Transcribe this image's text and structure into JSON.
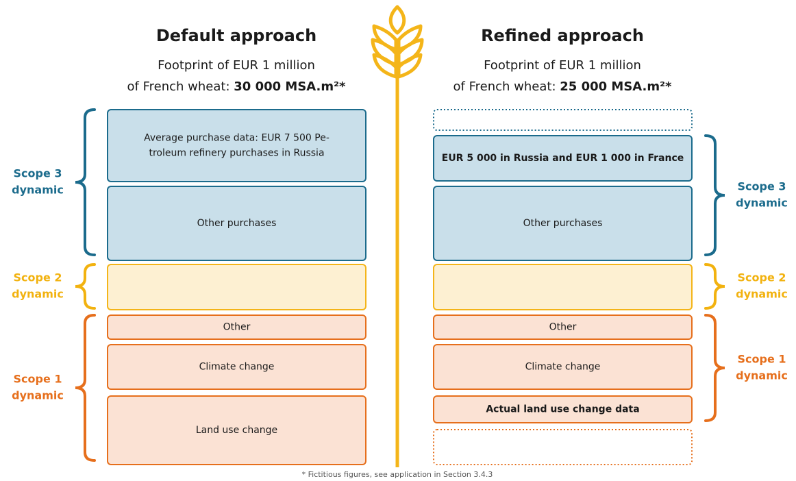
{
  "left": {
    "title": "Default approach",
    "subtitle": "Footprint of EUR 1 million",
    "subtitle_prefix": "of French wheat: ",
    "footprint": "30 000 MSA.m²*",
    "boxes": [
      {
        "lines": [
          "Average purchase data: EUR 7 500 Pe-",
          "troleum refinery purchases in Russia"
        ]
      },
      {
        "lines": [
          "Other purchases"
        ]
      },
      {
        "lines": [
          "Other"
        ]
      },
      {
        "lines": [
          "Climate change"
        ]
      },
      {
        "lines": [
          "Land use change"
        ]
      }
    ],
    "scopes": [
      [
        "Scope 3",
        "dynamic"
      ],
      [
        "Scope 2",
        "dynamic"
      ],
      [
        "Scope 1",
        "dynamic"
      ]
    ]
  },
  "right": {
    "title": "Refined approach",
    "subtitle": "Footprint of EUR 1 million",
    "subtitle_prefix": "of French wheat: ",
    "footprint": "25 000 MSA.m²*",
    "boxes": [
      {
        "lines": [
          "EUR 5 000 in Russia and EUR 1 000 in France"
        ]
      },
      {
        "lines": [
          "Other purchases"
        ]
      },
      {
        "lines": [
          "Other"
        ]
      },
      {
        "lines": [
          "Climate change"
        ]
      },
      {
        "lines": [
          "Actual land use change data"
        ]
      }
    ],
    "scopes": [
      [
        "Scope 3",
        "dynamic"
      ],
      [
        "Scope 2",
        "dynamic"
      ],
      [
        "Scope 1",
        "dynamic"
      ]
    ]
  },
  "footnote": "* Fictitious figures, see application in Section 3.4.3"
}
